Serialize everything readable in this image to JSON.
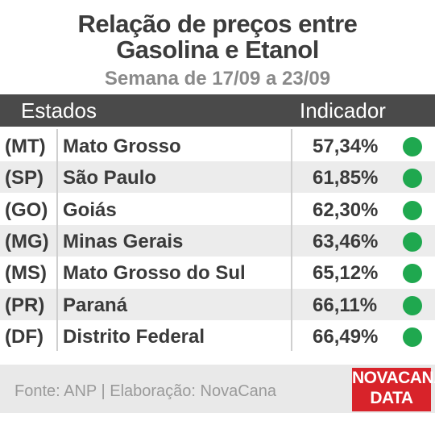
{
  "header": {
    "title_lines": [
      "Relação de preços entre",
      "Gasolina e Etanol"
    ],
    "subtitle": "Semana de 17/09 a 23/09"
  },
  "table": {
    "columns": [
      "Estados",
      "Indicador"
    ],
    "rows": [
      [
        "(MT)",
        "Mato Grosso",
        "57,34%"
      ],
      [
        "(SP)",
        "São Paulo",
        "61,85%"
      ],
      [
        "(GO)",
        "Goiás",
        "62,30%"
      ],
      [
        "(MG)",
        "Minas Gerais",
        "63,46%"
      ],
      [
        "(MS)",
        "Mato Grosso do Sul",
        "65,12%"
      ],
      [
        "(PR)",
        "Paraná",
        "66,11%"
      ],
      [
        "(DF)",
        "Distrito Federal",
        "66,49%"
      ]
    ]
  },
  "footer": {
    "source": "Fonte: ANP | Elaboração: NovaCana",
    "logo_lines": [
      "NOVACANA",
      "DATA"
    ]
  }
}
